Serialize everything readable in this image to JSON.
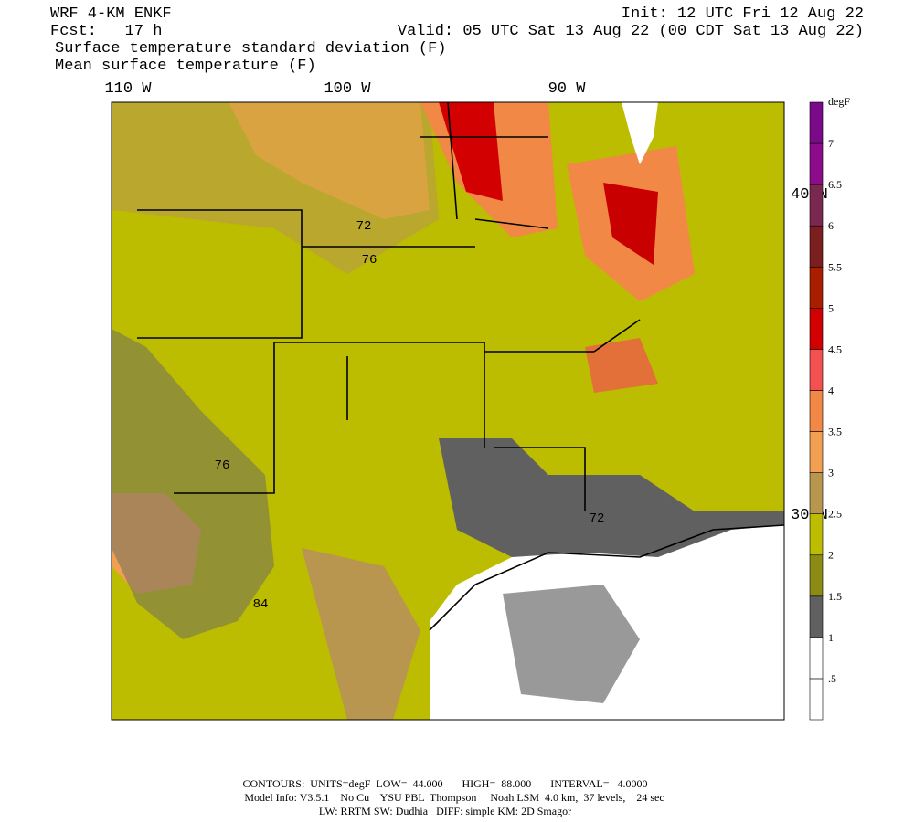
{
  "header": {
    "model": "WRF 4-KM ENKF",
    "forecast": "Fcst:   17 h",
    "init": "Init: 12 UTC Fri 12 Aug 22",
    "valid": "Valid: 05 UTC Sat 13 Aug 22 (00 CDT Sat 13 Aug 22)",
    "field_shaded": "Surface temperature standard deviation (F)",
    "field_contour": "Mean surface temperature (F)"
  },
  "map": {
    "longitude_labels": [
      "110 W",
      "100 W",
      "90 W"
    ],
    "latitude_labels": [
      "40 N",
      "30 N"
    ],
    "contour_labels": [
      "72",
      "76",
      "76",
      "84",
      "72"
    ]
  },
  "colorbar": {
    "units": "degF",
    "labels": [
      ".5",
      "1",
      "1.5",
      "2",
      "2.5",
      "3",
      "3.5",
      "4",
      "4.5",
      "5",
      "5.5",
      "6",
      "6.5",
      "7"
    ],
    "colors": [
      "#ffffff",
      "#ffffff",
      "#606060",
      "#8c8c14",
      "#bcbc00",
      "#b89650",
      "#f0a050",
      "#f28846",
      "#f45050",
      "#d20000",
      "#aa1e00",
      "#7a1e1e",
      "#7a2850",
      "#8c0c8c",
      "#7a0a8a"
    ]
  },
  "footer": {
    "line1": "CONTOURS:  UNITS=degF  LOW=  44.000       HIGH=  88.000       INTERVAL=   4.0000",
    "line2": "Model Info: V3.5.1    No Cu    YSU PBL  Thompson     Noah LSM  4.0 km,  37 levels,    24 sec",
    "line3": "LW: RRTM SW: Dudhia   DIFF: simple KM: 2D Smagor"
  }
}
